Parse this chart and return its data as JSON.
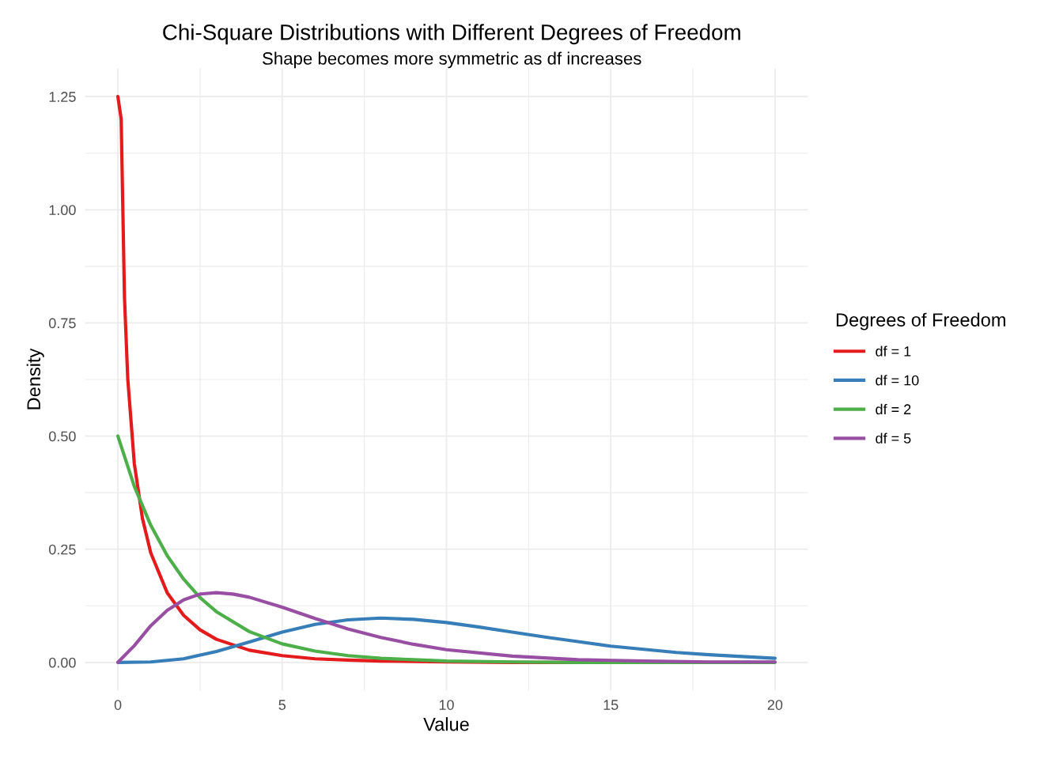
{
  "chart_data": {
    "type": "line",
    "title": "Chi-Square Distributions with Different Degrees of Freedom",
    "subtitle": "Shape becomes more symmetric as df increases",
    "xlabel": "Value",
    "ylabel": "Density",
    "legend_title": "Degrees of Freedom",
    "legend": "right",
    "grid": true,
    "marker": "none",
    "line_style": "solid",
    "xlim": [
      -1,
      21
    ],
    "xticks": [
      0,
      5,
      10,
      15,
      20
    ],
    "ylim": [
      -0.0625,
      1.3125
    ],
    "yticks": [
      {
        "value": 0,
        "label": "0.00"
      },
      {
        "value": 0.25,
        "label": "0.25"
      },
      {
        "value": 0.5,
        "label": "0.50"
      },
      {
        "value": 0.75,
        "label": "0.75"
      },
      {
        "value": 1,
        "label": "1.00"
      },
      {
        "value": 1.25,
        "label": "1.25"
      }
    ],
    "series": [
      {
        "name": "df = 1",
        "color": "#e41a1c",
        "x": [
          0,
          0.1,
          0.2,
          0.3,
          0.5,
          0.75,
          1,
          1.5,
          2,
          2.5,
          3,
          4,
          5,
          6,
          7,
          8,
          10,
          12,
          14
        ],
        "values": [
          1.25,
          1.2,
          0.807,
          0.627,
          0.439,
          0.317,
          0.242,
          0.154,
          0.104,
          0.072,
          0.051,
          0.027,
          0.015,
          0.008,
          0.005,
          0.003,
          0.001,
          0,
          0
        ]
      },
      {
        "name": "df = 10",
        "color": "#377eb8",
        "x": [
          0,
          1,
          2,
          3,
          4,
          5,
          6,
          7,
          8,
          9,
          10,
          11,
          12,
          13,
          14,
          15,
          16,
          17,
          18,
          20
        ],
        "values": [
          0,
          0.001,
          0.008,
          0.024,
          0.045,
          0.067,
          0.084,
          0.094,
          0.098,
          0.095,
          0.088,
          0.078,
          0.067,
          0.056,
          0.046,
          0.036,
          0.029,
          0.022,
          0.017,
          0.009
        ]
      },
      {
        "name": "df = 2",
        "color": "#4daf4a",
        "x": [
          0,
          0.5,
          1,
          1.5,
          2,
          2.5,
          3,
          4,
          5,
          6,
          7,
          8,
          9,
          10,
          12,
          14,
          16,
          18,
          20
        ],
        "values": [
          0.5,
          0.389,
          0.303,
          0.236,
          0.184,
          0.143,
          0.112,
          0.068,
          0.041,
          0.025,
          0.015,
          0.009,
          0.006,
          0.003,
          0.001,
          0,
          0,
          0,
          0
        ]
      },
      {
        "name": "df = 5",
        "color": "#984ea3",
        "x": [
          0,
          0.5,
          1,
          1.5,
          2,
          2.5,
          3,
          3.5,
          4,
          5,
          6,
          7,
          8,
          9,
          10,
          12,
          14,
          16,
          18,
          20
        ],
        "values": [
          0,
          0.037,
          0.081,
          0.115,
          0.138,
          0.151,
          0.154,
          0.151,
          0.144,
          0.122,
          0.097,
          0.074,
          0.055,
          0.04,
          0.028,
          0.014,
          0.006,
          0.003,
          0.001,
          0.001
        ]
      }
    ]
  }
}
